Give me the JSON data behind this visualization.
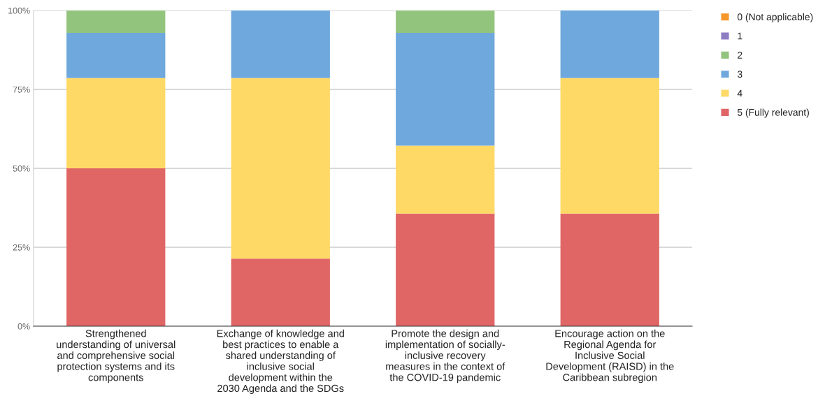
{
  "chart_data": {
    "type": "bar",
    "stacked": true,
    "categories": [
      "Strengthened\nunderstanding of universal\nand comprehensive social\nprotection systems and its\ncomponents",
      "Exchange of knowledge and\nbest practices to enable a\nshared understanding of\ninclusive social\ndevelopment within the\n2030 Agenda and the SDGs",
      "Promote the design and\nimplementation of socially-\ninclusive recovery\nmeasures in the context of\nthe COVID-19 pandemic",
      "Encourage action on the\nRegional Agenda for\nInclusive Social\nDevelopment (RAISD) in the\nCaribbean subregion"
    ],
    "series": [
      {
        "name": "5 (Fully relevant)",
        "color": "#e06666",
        "values": [
          50,
          21.4,
          35.7,
          35.7
        ]
      },
      {
        "name": "4",
        "color": "#ffd966",
        "values": [
          28.6,
          57.2,
          21.5,
          42.9
        ]
      },
      {
        "name": "3",
        "color": "#6fa8dc",
        "values": [
          14.3,
          21.4,
          35.7,
          21.4
        ]
      },
      {
        "name": "2",
        "color": "#93c47d",
        "values": [
          7.1,
          0,
          7.1,
          0
        ]
      },
      {
        "name": "1",
        "color": "#8e7cc3",
        "values": [
          0,
          0,
          0,
          0
        ]
      },
      {
        "name": "0 (Not applicable)",
        "color": "#f6962b",
        "values": [
          0,
          0,
          0,
          0
        ]
      }
    ],
    "ylim": [
      0,
      100
    ],
    "yticks": [
      {
        "value": 0,
        "label": "0%"
      },
      {
        "value": 25,
        "label": "25%"
      },
      {
        "value": 50,
        "label": "50%"
      },
      {
        "value": 75,
        "label": "75%"
      },
      {
        "value": 100,
        "label": "100%"
      }
    ],
    "grid": "y",
    "legend": "right"
  }
}
